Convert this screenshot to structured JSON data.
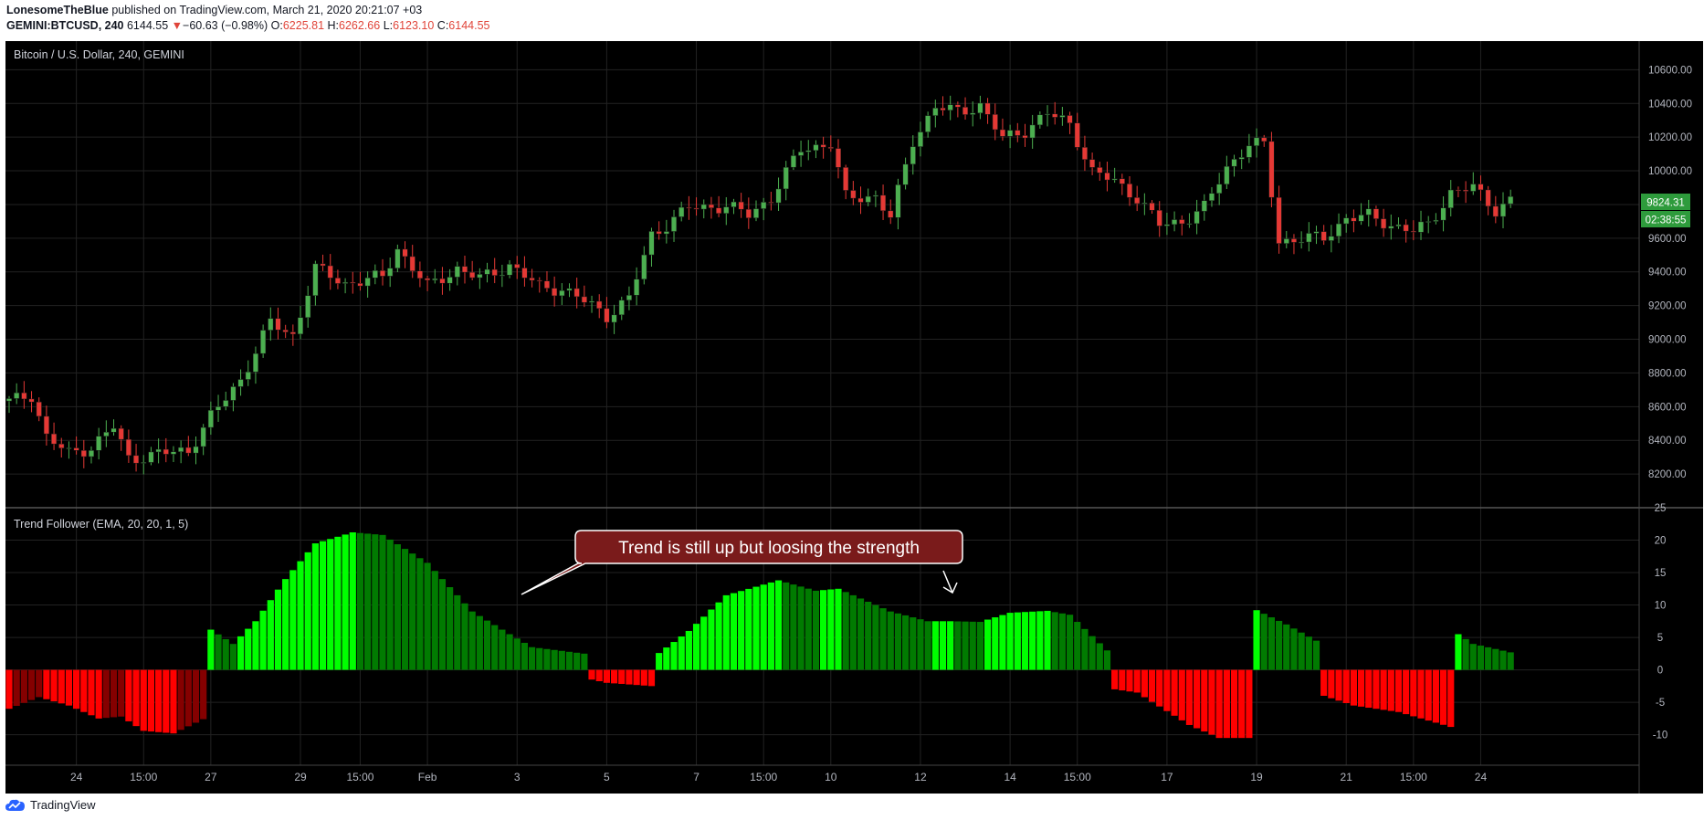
{
  "header": {
    "author": "LonesomeTheBlue",
    "published": "published on TradingView.com, March 21, 2020 20:21:07 +03",
    "symbol": "GEMINI:BTCUSD, 240",
    "last": "6144.55",
    "change_arrow": "▼",
    "change": "−60.63 (−0.98%)",
    "o_label": "O:",
    "o": "6225.81",
    "h_label": "H:",
    "h": "6262.66",
    "l_label": "L:",
    "l": "6123.10",
    "c_label": "C:",
    "c": "6144.55"
  },
  "footer": {
    "brand": "TradingView",
    "logo_icon": "tradingview-cloud-icon"
  },
  "colors": {
    "background": "#000000",
    "grid": "#222222",
    "up": "#4caf50",
    "down": "#e53935",
    "bright_green": "#00ff00",
    "dark_green": "#017b01",
    "bright_red": "#ff0000",
    "dark_red": "#850000",
    "callout_bg": "#7a1b1b",
    "price_tag_bg": "#2e9b3c"
  },
  "chart_data": [
    {
      "type": "candlestick",
      "title": "Bitcoin / U.S. Dollar, 240, GEMINI",
      "y_ticks": [
        "10600.00",
        "10400.00",
        "10200.00",
        "10000.00",
        "9800.00",
        "9600.00",
        "9400.00",
        "9200.00",
        "9000.00",
        "8800.00",
        "8600.00",
        "8400.00",
        "8200.00"
      ],
      "ylim": [
        8000,
        10770
      ],
      "price_tags": [
        "9824.31",
        "02:38:55"
      ],
      "close_anchors": [
        [
          0,
          8630
        ],
        [
          3,
          8670
        ],
        [
          5,
          8420
        ],
        [
          8,
          8320
        ],
        [
          11,
          8360
        ],
        [
          14,
          8480
        ],
        [
          16,
          8290
        ],
        [
          20,
          8320
        ],
        [
          24,
          8340
        ],
        [
          27,
          8540
        ],
        [
          31,
          8760
        ],
        [
          35,
          9100
        ],
        [
          38,
          9020
        ],
        [
          41,
          9420
        ],
        [
          45,
          9330
        ],
        [
          50,
          9370
        ],
        [
          52,
          9540
        ],
        [
          56,
          9310
        ],
        [
          60,
          9420
        ],
        [
          63,
          9360
        ],
        [
          67,
          9440
        ],
        [
          71,
          9310
        ],
        [
          74,
          9300
        ],
        [
          78,
          9200
        ],
        [
          80,
          9140
        ],
        [
          83,
          9240
        ],
        [
          86,
          9620
        ],
        [
          88,
          9680
        ],
        [
          91,
          9780
        ],
        [
          96,
          9790
        ],
        [
          99,
          9740
        ],
        [
          102,
          9840
        ],
        [
          106,
          10130
        ],
        [
          110,
          10160
        ],
        [
          112,
          9840
        ],
        [
          116,
          9850
        ],
        [
          118,
          9720
        ],
        [
          121,
          10180
        ],
        [
          124,
          10380
        ],
        [
          127,
          10350
        ],
        [
          130,
          10390
        ],
        [
          133,
          10190
        ],
        [
          136,
          10240
        ],
        [
          139,
          10340
        ],
        [
          142,
          10280
        ],
        [
          145,
          9990
        ],
        [
          148,
          9940
        ],
        [
          151,
          9840
        ],
        [
          154,
          9680
        ],
        [
          157,
          9700
        ],
        [
          160,
          9780
        ],
        [
          163,
          10020
        ],
        [
          166,
          10160
        ],
        [
          168,
          10150
        ],
        [
          170,
          9580
        ],
        [
          173,
          9600
        ],
        [
          176,
          9600
        ],
        [
          179,
          9720
        ],
        [
          182,
          9730
        ],
        [
          185,
          9680
        ],
        [
          188,
          9640
        ],
        [
          190,
          9680
        ],
        [
          193,
          9870
        ],
        [
          196,
          9900
        ],
        [
          199,
          9770
        ],
        [
          201,
          9824
        ]
      ]
    },
    {
      "type": "bar",
      "title": "Trend Follower (EMA, 20, 20, 1, 5)",
      "y_ticks": [
        "25",
        "20",
        "15",
        "10",
        "5",
        "0",
        "-5",
        "-10"
      ],
      "ylim": [
        -14.7,
        25
      ],
      "annotation": "Trend is still up but loosing the strength",
      "value_anchors": [
        [
          0,
          -6
        ],
        [
          4,
          -4.2
        ],
        [
          8,
          -5.5
        ],
        [
          12,
          -7.5
        ],
        [
          15,
          -7.2
        ],
        [
          18,
          -9.4
        ],
        [
          22,
          -9.8
        ],
        [
          26,
          -7.6
        ],
        [
          27,
          6.2
        ],
        [
          30,
          4
        ],
        [
          33,
          7.5
        ],
        [
          37,
          14
        ],
        [
          41,
          19.5
        ],
        [
          46,
          21.2
        ],
        [
          50,
          20.8
        ],
        [
          56,
          16.5
        ],
        [
          62,
          9
        ],
        [
          67,
          5.5
        ],
        [
          70,
          3.5
        ],
        [
          77,
          2.5
        ],
        [
          78,
          -1.5
        ],
        [
          80,
          -2
        ],
        [
          86,
          -2.5
        ],
        [
          87,
          2.6
        ],
        [
          91,
          6
        ],
        [
          96,
          11.5
        ],
        [
          103,
          13.8
        ],
        [
          108,
          12.2
        ],
        [
          111,
          12.5
        ],
        [
          114,
          11
        ],
        [
          118,
          9
        ],
        [
          123,
          7.5
        ],
        [
          126,
          7.5
        ],
        [
          130,
          7.4
        ],
        [
          134,
          8.8
        ],
        [
          139,
          9.1
        ],
        [
          142,
          8.5
        ],
        [
          147,
          3
        ],
        [
          148,
          -3
        ],
        [
          151,
          -3.5
        ],
        [
          158,
          -8.5
        ],
        [
          162,
          -10.5
        ],
        [
          166,
          -10.5
        ],
        [
          167,
          9.2
        ],
        [
          171,
          7
        ],
        [
          175,
          4.5
        ],
        [
          176,
          -4
        ],
        [
          180,
          -5.5
        ],
        [
          186,
          -6.5
        ],
        [
          193,
          -8.8
        ],
        [
          194,
          5.5
        ],
        [
          196,
          4
        ],
        [
          201,
          2.7
        ]
      ],
      "color_rules": "positive rising = bright green, positive falling = dark green, negative falling = bright red, negative rising = dark red"
    }
  ],
  "x_axis": {
    "labels": [
      "24",
      "15:00",
      "27",
      "29",
      "15:00",
      "Feb",
      "3",
      "5",
      "7",
      "15:00",
      "10",
      "12",
      "14",
      "15:00",
      "17",
      "19",
      "21",
      "15:00",
      "24"
    ],
    "bar_index": [
      9,
      18,
      27,
      39,
      47,
      56,
      68,
      80,
      92,
      101,
      110,
      122,
      134,
      143,
      155,
      167,
      179,
      188,
      197
    ]
  }
}
